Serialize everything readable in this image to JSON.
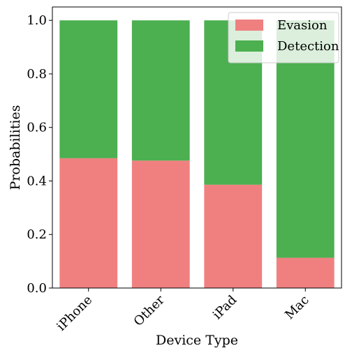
{
  "chart_data": {
    "type": "bar",
    "stacked": true,
    "categories": [
      "iPhone",
      "Other",
      "iPad",
      "Mac"
    ],
    "series": [
      {
        "name": "Evasion",
        "values": [
          0.485,
          0.476,
          0.386,
          0.113
        ],
        "color": "#f08080"
      },
      {
        "name": "Detection",
        "values": [
          0.515,
          0.524,
          0.614,
          0.887
        ],
        "color": "#4caf50"
      }
    ],
    "xlabel": "Device Type",
    "ylabel": "Probabilities",
    "ylim": [
      0,
      1.05
    ],
    "yticks": [
      "0.0",
      "0.2",
      "0.4",
      "0.6",
      "0.8",
      "1.0"
    ],
    "grid": false,
    "legend_position": "top-right"
  }
}
